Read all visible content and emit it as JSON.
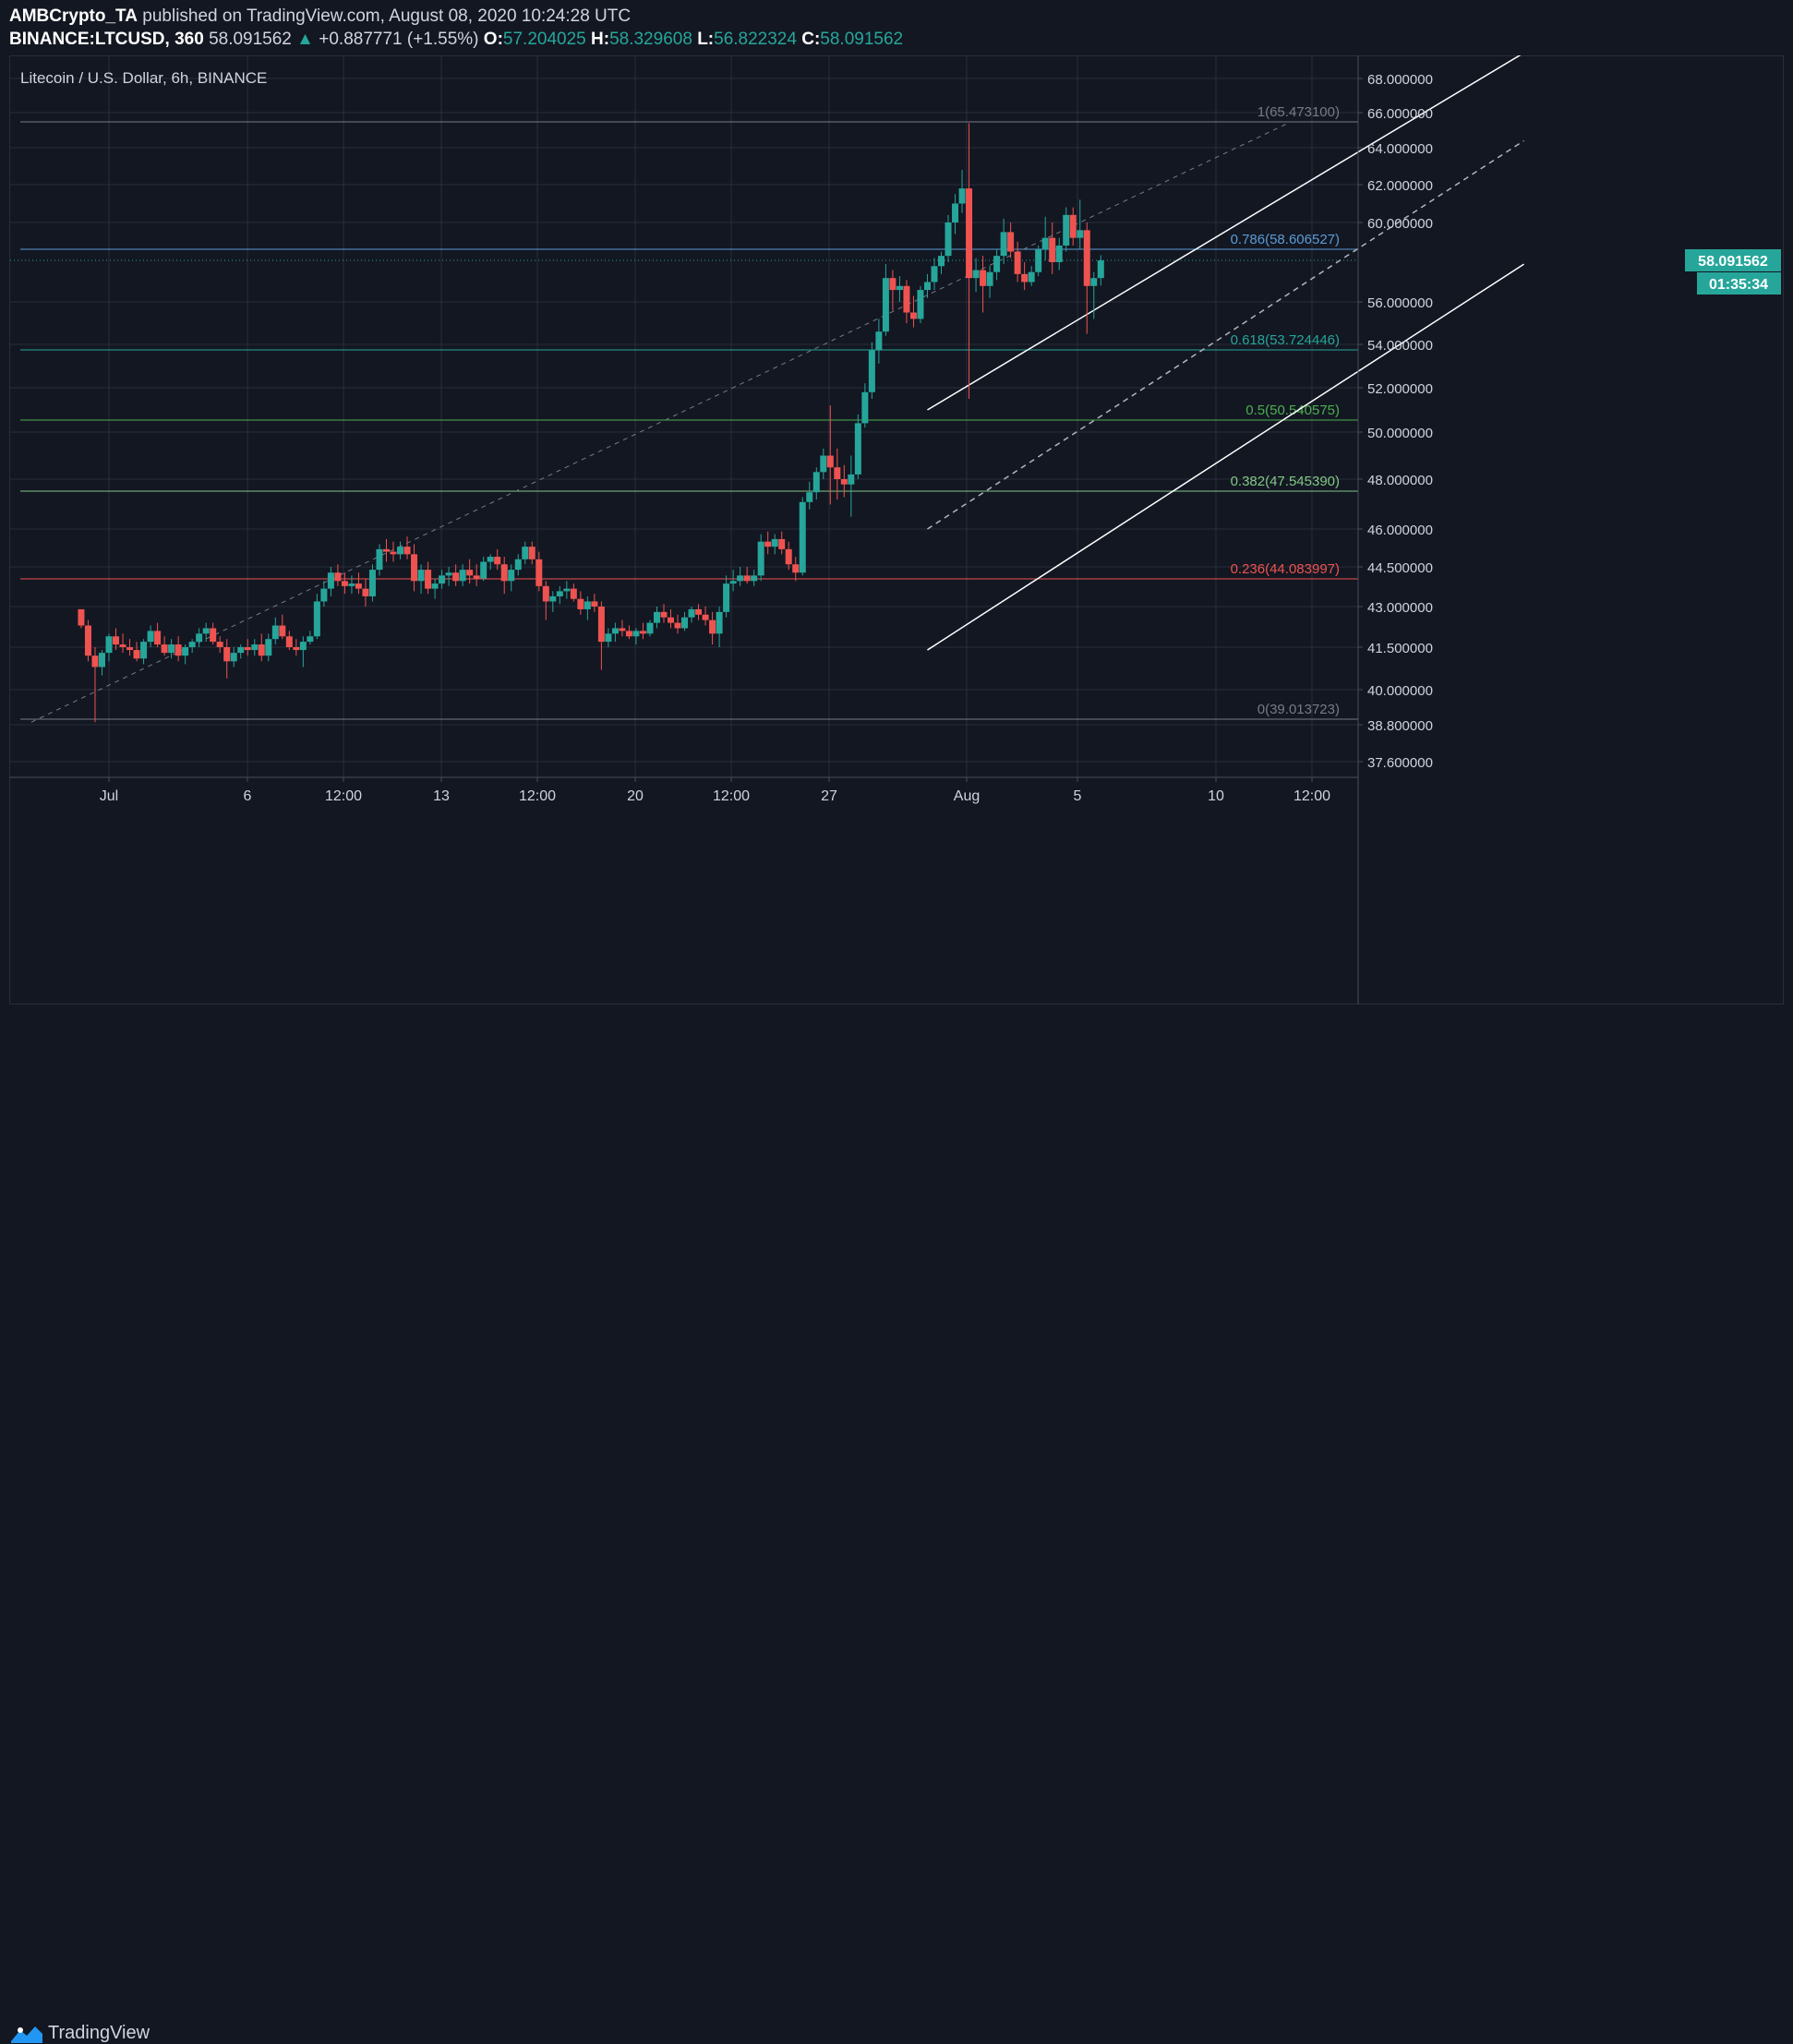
{
  "header": {
    "author": "AMBCrypto_TA",
    "published_text": "published on TradingView.com, August 08, 2020 10:24:28 UTC",
    "symbol": "BINANCE:LTCUSD, 360",
    "price": "58.091562",
    "change_arrow": "▲",
    "change": "+0.887771 (+1.55%)",
    "open_label": "O:",
    "open": "57.204025",
    "high_label": "H:",
    "high": "58.329608",
    "low_label": "L:",
    "low": "56.822324",
    "close_label": "C:",
    "close": "58.091562"
  },
  "footer": {
    "brand": "TradingView",
    "logo_icon": "tradingview-logo-icon"
  },
  "colors": {
    "background": "#131722",
    "up": "#26a69a",
    "down": "#ef5350",
    "fib_786": "#5b9bd5",
    "fib_618": "#26a69a",
    "fib_5": "#4caf50",
    "fib_382": "#81c784",
    "fib_236": "#ef5350",
    "fib_edge": "#787b86"
  },
  "chart_data": {
    "type": "candlestick",
    "title": "Litecoin / U.S. Dollar, 6h, BINANCE",
    "x_tick_labels": [
      "Jul",
      "6",
      "12:00",
      "13",
      "12:00",
      "20",
      "12:00",
      "27",
      "Aug",
      "5",
      "10",
      "12:00"
    ],
    "y_tick_labels": [
      "68.000000",
      "66.000000",
      "64.000000",
      "62.000000",
      "60.000000",
      "56.000000",
      "54.000000",
      "52.000000",
      "50.000000",
      "48.000000",
      "46.000000",
      "44.500000",
      "43.000000",
      "41.500000",
      "40.000000",
      "38.800000",
      "37.600000"
    ],
    "last_price_label": "58.091562",
    "countdown_label": "01:35:34",
    "fib_levels": [
      {
        "ratio": "1",
        "value": 65.4731,
        "label": "1(65.473100)",
        "color_key": "fib_edge"
      },
      {
        "ratio": "0.786",
        "value": 58.606527,
        "label": "0.786(58.606527)",
        "color_key": "fib_786"
      },
      {
        "ratio": "0.618",
        "value": 53.724446,
        "label": "0.618(53.724446)",
        "color_key": "fib_618"
      },
      {
        "ratio": "0.5",
        "value": 50.540575,
        "label": "0.5(50.540575)",
        "color_key": "fib_5"
      },
      {
        "ratio": "0.382",
        "value": 47.54539,
        "label": "0.382(47.545390)",
        "color_key": "fib_382"
      },
      {
        "ratio": "0.236",
        "value": 44.083997,
        "label": "0.236(44.083997)",
        "color_key": "fib_236"
      },
      {
        "ratio": "0",
        "value": 39.013723,
        "label": "0(39.013723)",
        "color_key": "fib_edge"
      }
    ],
    "channel": {
      "upper": [
        [
          29.5,
          51.0
        ],
        [
          51.0,
          69.5
        ]
      ],
      "mid": [
        [
          29.5,
          46.0
        ],
        [
          51.0,
          64.4
        ]
      ],
      "lower": [
        [
          29.5,
          41.4
        ],
        [
          51.0,
          57.9
        ]
      ],
      "ext": [
        [
          0,
          38.9
        ],
        [
          42.5,
          65.4
        ]
      ]
    },
    "candles": [
      [
        -1.0,
        42.9,
        42.9,
        42.2,
        42.3
      ],
      [
        -0.75,
        42.3,
        42.5,
        41.0,
        41.2
      ],
      [
        -0.5,
        41.2,
        41.5,
        38.9,
        40.8
      ],
      [
        -0.25,
        40.8,
        41.4,
        40.5,
        41.3
      ],
      [
        0.0,
        41.3,
        42.0,
        41.0,
        41.9
      ],
      [
        0.25,
        41.9,
        42.2,
        41.4,
        41.6
      ],
      [
        0.5,
        41.6,
        42.0,
        41.3,
        41.5
      ],
      [
        0.75,
        41.5,
        41.8,
        41.2,
        41.4
      ],
      [
        1.0,
        41.4,
        41.7,
        41.0,
        41.1
      ],
      [
        1.25,
        41.1,
        41.8,
        40.9,
        41.7
      ],
      [
        1.5,
        41.7,
        42.3,
        41.5,
        42.1
      ],
      [
        1.75,
        42.1,
        42.4,
        41.5,
        41.6
      ],
      [
        2.0,
        41.6,
        41.9,
        41.2,
        41.3
      ],
      [
        2.25,
        41.3,
        41.8,
        41.1,
        41.6
      ],
      [
        2.5,
        41.6,
        41.9,
        41.0,
        41.2
      ],
      [
        2.75,
        41.2,
        41.6,
        40.9,
        41.5
      ],
      [
        3.0,
        41.5,
        41.8,
        41.3,
        41.7
      ],
      [
        3.25,
        41.7,
        42.2,
        41.5,
        42.0
      ],
      [
        3.5,
        42.0,
        42.4,
        41.7,
        42.2
      ],
      [
        3.75,
        42.2,
        42.4,
        41.6,
        41.7
      ],
      [
        4.0,
        41.7,
        41.9,
        41.3,
        41.5
      ],
      [
        4.25,
        41.5,
        41.8,
        40.4,
        41.0
      ],
      [
        4.5,
        41.0,
        41.5,
        40.8,
        41.3
      ],
      [
        4.75,
        41.3,
        41.6,
        41.1,
        41.5
      ],
      [
        5.0,
        41.5,
        41.8,
        41.2,
        41.4
      ],
      [
        5.25,
        41.4,
        41.8,
        41.2,
        41.6
      ],
      [
        5.5,
        41.6,
        42.0,
        41.0,
        41.2
      ],
      [
        5.75,
        41.2,
        42.0,
        41.0,
        41.8
      ],
      [
        6.0,
        41.8,
        42.6,
        41.6,
        42.3
      ],
      [
        6.25,
        42.3,
        42.7,
        41.8,
        41.9
      ],
      [
        6.5,
        41.9,
        42.1,
        41.4,
        41.5
      ],
      [
        6.75,
        41.5,
        41.8,
        41.2,
        41.4
      ],
      [
        7.0,
        41.4,
        41.9,
        40.8,
        41.7
      ],
      [
        7.25,
        41.7,
        42.1,
        41.6,
        41.9
      ],
      [
        7.5,
        41.9,
        43.5,
        41.8,
        43.2
      ],
      [
        7.75,
        43.2,
        44.0,
        43.0,
        43.7
      ],
      [
        8.0,
        43.7,
        44.5,
        43.4,
        44.3
      ],
      [
        8.25,
        44.3,
        44.6,
        43.8,
        44.0
      ],
      [
        8.5,
        44.0,
        44.3,
        43.5,
        43.8
      ],
      [
        8.75,
        43.8,
        44.2,
        43.5,
        43.9
      ],
      [
        9.0,
        43.9,
        44.3,
        43.5,
        43.7
      ],
      [
        9.25,
        43.7,
        44.1,
        43.0,
        43.4
      ],
      [
        9.5,
        43.4,
        44.6,
        43.2,
        44.4
      ],
      [
        9.75,
        44.4,
        45.4,
        44.2,
        45.2
      ],
      [
        10.0,
        45.2,
        45.6,
        44.7,
        45.1
      ],
      [
        10.25,
        45.1,
        45.5,
        44.7,
        45.0
      ],
      [
        10.5,
        45.0,
        45.5,
        44.8,
        45.3
      ],
      [
        10.75,
        45.3,
        45.7,
        44.8,
        45.0
      ],
      [
        11.0,
        45.0,
        45.4,
        43.6,
        44.0
      ],
      [
        11.25,
        44.0,
        44.6,
        43.5,
        44.4
      ],
      [
        11.5,
        44.4,
        44.7,
        43.5,
        43.7
      ],
      [
        11.75,
        43.7,
        44.1,
        43.3,
        43.9
      ],
      [
        12.0,
        43.9,
        44.4,
        43.7,
        44.2
      ],
      [
        12.25,
        44.2,
        44.5,
        43.8,
        44.3
      ],
      [
        12.5,
        44.3,
        44.6,
        43.8,
        44.0
      ],
      [
        12.75,
        44.0,
        44.6,
        43.8,
        44.4
      ],
      [
        13.0,
        44.4,
        44.8,
        43.9,
        44.2
      ],
      [
        13.25,
        44.2,
        44.6,
        43.8,
        44.1
      ],
      [
        13.5,
        44.1,
        44.9,
        44.0,
        44.7
      ],
      [
        13.75,
        44.7,
        45.0,
        44.4,
        44.9
      ],
      [
        14.0,
        44.9,
        45.2,
        44.4,
        44.6
      ],
      [
        14.25,
        44.6,
        44.9,
        43.5,
        44.0
      ],
      [
        14.5,
        44.0,
        44.6,
        43.6,
        44.4
      ],
      [
        14.75,
        44.4,
        45.0,
        44.2,
        44.8
      ],
      [
        15.0,
        44.8,
        45.5,
        44.6,
        45.3
      ],
      [
        15.25,
        45.3,
        45.5,
        44.6,
        44.8
      ],
      [
        15.5,
        44.8,
        45.1,
        43.6,
        43.8
      ],
      [
        15.75,
        43.8,
        44.0,
        42.5,
        43.2
      ],
      [
        16.0,
        43.2,
        43.6,
        42.8,
        43.4
      ],
      [
        16.25,
        43.4,
        43.8,
        43.1,
        43.6
      ],
      [
        16.5,
        43.6,
        44.0,
        43.3,
        43.7
      ],
      [
        16.75,
        43.7,
        43.9,
        43.2,
        43.3
      ],
      [
        17.0,
        43.3,
        43.6,
        42.7,
        42.9
      ],
      [
        17.25,
        42.9,
        43.4,
        42.5,
        43.2
      ],
      [
        17.5,
        43.2,
        43.5,
        42.8,
        43.0
      ],
      [
        17.75,
        43.0,
        43.2,
        40.7,
        41.7
      ],
      [
        18.0,
        41.7,
        42.2,
        41.5,
        42.0
      ],
      [
        18.25,
        42.0,
        42.4,
        41.7,
        42.2
      ],
      [
        18.5,
        42.2,
        42.5,
        41.9,
        42.1
      ],
      [
        18.75,
        42.1,
        42.3,
        41.8,
        41.9
      ],
      [
        19.0,
        41.9,
        42.2,
        41.6,
        42.1
      ],
      [
        19.25,
        42.1,
        42.4,
        41.8,
        42.0
      ],
      [
        19.5,
        42.0,
        42.5,
        41.9,
        42.4
      ],
      [
        19.75,
        42.4,
        43.0,
        42.2,
        42.8
      ],
      [
        20.0,
        42.8,
        43.1,
        42.4,
        42.6
      ],
      [
        20.25,
        42.6,
        42.9,
        42.2,
        42.4
      ],
      [
        20.5,
        42.4,
        42.7,
        42.0,
        42.2
      ],
      [
        20.75,
        42.2,
        42.8,
        42.1,
        42.6
      ],
      [
        21.0,
        42.6,
        43.0,
        42.4,
        42.9
      ],
      [
        21.25,
        42.9,
        43.1,
        42.5,
        42.7
      ],
      [
        21.5,
        42.7,
        43.0,
        42.3,
        42.5
      ],
      [
        21.75,
        42.5,
        42.8,
        41.6,
        42.0
      ],
      [
        22.0,
        42.0,
        43.0,
        41.5,
        42.8
      ],
      [
        22.25,
        42.8,
        44.2,
        42.6,
        43.9
      ],
      [
        22.5,
        43.9,
        44.4,
        43.6,
        44.0
      ],
      [
        22.75,
        44.0,
        44.5,
        43.8,
        44.2
      ],
      [
        23.0,
        44.2,
        44.5,
        43.9,
        44.0
      ],
      [
        23.25,
        44.0,
        44.4,
        43.8,
        44.2
      ],
      [
        23.5,
        44.2,
        45.8,
        44.0,
        45.5
      ],
      [
        23.75,
        45.5,
        45.9,
        45.0,
        45.3
      ],
      [
        24.0,
        45.3,
        45.8,
        45.0,
        45.6
      ],
      [
        24.25,
        45.6,
        45.9,
        45.0,
        45.2
      ],
      [
        24.5,
        45.2,
        45.5,
        44.4,
        44.6
      ],
      [
        24.75,
        44.6,
        44.9,
        44.0,
        44.3
      ],
      [
        25.0,
        44.3,
        47.3,
        44.2,
        47.1
      ],
      [
        25.25,
        47.1,
        47.9,
        46.8,
        47.5
      ],
      [
        25.5,
        47.5,
        48.5,
        47.2,
        48.3
      ],
      [
        25.75,
        48.3,
        49.3,
        48.0,
        49.0
      ],
      [
        26.0,
        49.0,
        51.2,
        47.0,
        48.5
      ],
      [
        26.25,
        48.5,
        49.3,
        47.2,
        48.0
      ],
      [
        26.5,
        48.0,
        48.6,
        47.3,
        47.8
      ],
      [
        26.75,
        47.8,
        49.0,
        46.5,
        48.2
      ],
      [
        27.0,
        48.2,
        50.8,
        48.0,
        50.4
      ],
      [
        27.25,
        50.4,
        52.2,
        50.2,
        51.8
      ],
      [
        27.5,
        51.8,
        54.1,
        51.5,
        53.7
      ],
      [
        27.75,
        53.7,
        55.2,
        53.1,
        54.6
      ],
      [
        28.0,
        54.6,
        57.9,
        54.4,
        57.2
      ],
      [
        28.25,
        57.2,
        57.6,
        55.6,
        56.6
      ],
      [
        28.5,
        56.6,
        57.3,
        56.0,
        56.8
      ],
      [
        28.75,
        56.8,
        57.1,
        55.0,
        55.5
      ],
      [
        29.0,
        55.5,
        56.3,
        54.8,
        55.2
      ],
      [
        29.25,
        55.2,
        56.8,
        55.0,
        56.6
      ],
      [
        29.5,
        56.6,
        57.4,
        56.2,
        57.0
      ],
      [
        29.75,
        57.0,
        58.2,
        56.6,
        57.8
      ],
      [
        30.0,
        57.8,
        58.5,
        57.4,
        58.3
      ],
      [
        30.25,
        58.3,
        60.4,
        58.0,
        60.0
      ],
      [
        30.5,
        60.0,
        61.5,
        59.4,
        61.0
      ],
      [
        30.75,
        61.0,
        62.8,
        60.5,
        61.8
      ],
      [
        31.0,
        61.8,
        65.4,
        51.5,
        57.2
      ],
      [
        31.25,
        57.2,
        58.2,
        56.5,
        57.6
      ],
      [
        31.5,
        57.6,
        58.3,
        55.5,
        56.8
      ],
      [
        31.75,
        56.8,
        57.8,
        56.2,
        57.5
      ],
      [
        32.0,
        57.5,
        58.6,
        57.1,
        58.3
      ],
      [
        32.25,
        58.3,
        60.2,
        57.9,
        59.5
      ],
      [
        32.5,
        59.5,
        60.0,
        58.2,
        58.5
      ],
      [
        32.75,
        58.5,
        59.0,
        57.0,
        57.4
      ],
      [
        33.0,
        57.4,
        58.0,
        56.6,
        57.0
      ],
      [
        33.25,
        57.0,
        57.8,
        56.8,
        57.5
      ],
      [
        33.5,
        57.5,
        58.8,
        57.3,
        58.6
      ],
      [
        33.75,
        58.6,
        60.3,
        58.1,
        59.2
      ],
      [
        34.0,
        59.2,
        60.0,
        57.4,
        58.0
      ],
      [
        34.25,
        58.0,
        59.2,
        57.6,
        58.8
      ],
      [
        34.5,
        58.8,
        60.8,
        58.5,
        60.4
      ],
      [
        34.75,
        60.4,
        60.8,
        58.8,
        59.2
      ],
      [
        35.0,
        59.2,
        61.2,
        58.6,
        59.6
      ],
      [
        35.25,
        59.6,
        60.0,
        54.5,
        56.8
      ],
      [
        35.5,
        56.8,
        57.5,
        55.2,
        57.2
      ],
      [
        35.75,
        57.2,
        58.33,
        56.82,
        58.09
      ]
    ]
  }
}
